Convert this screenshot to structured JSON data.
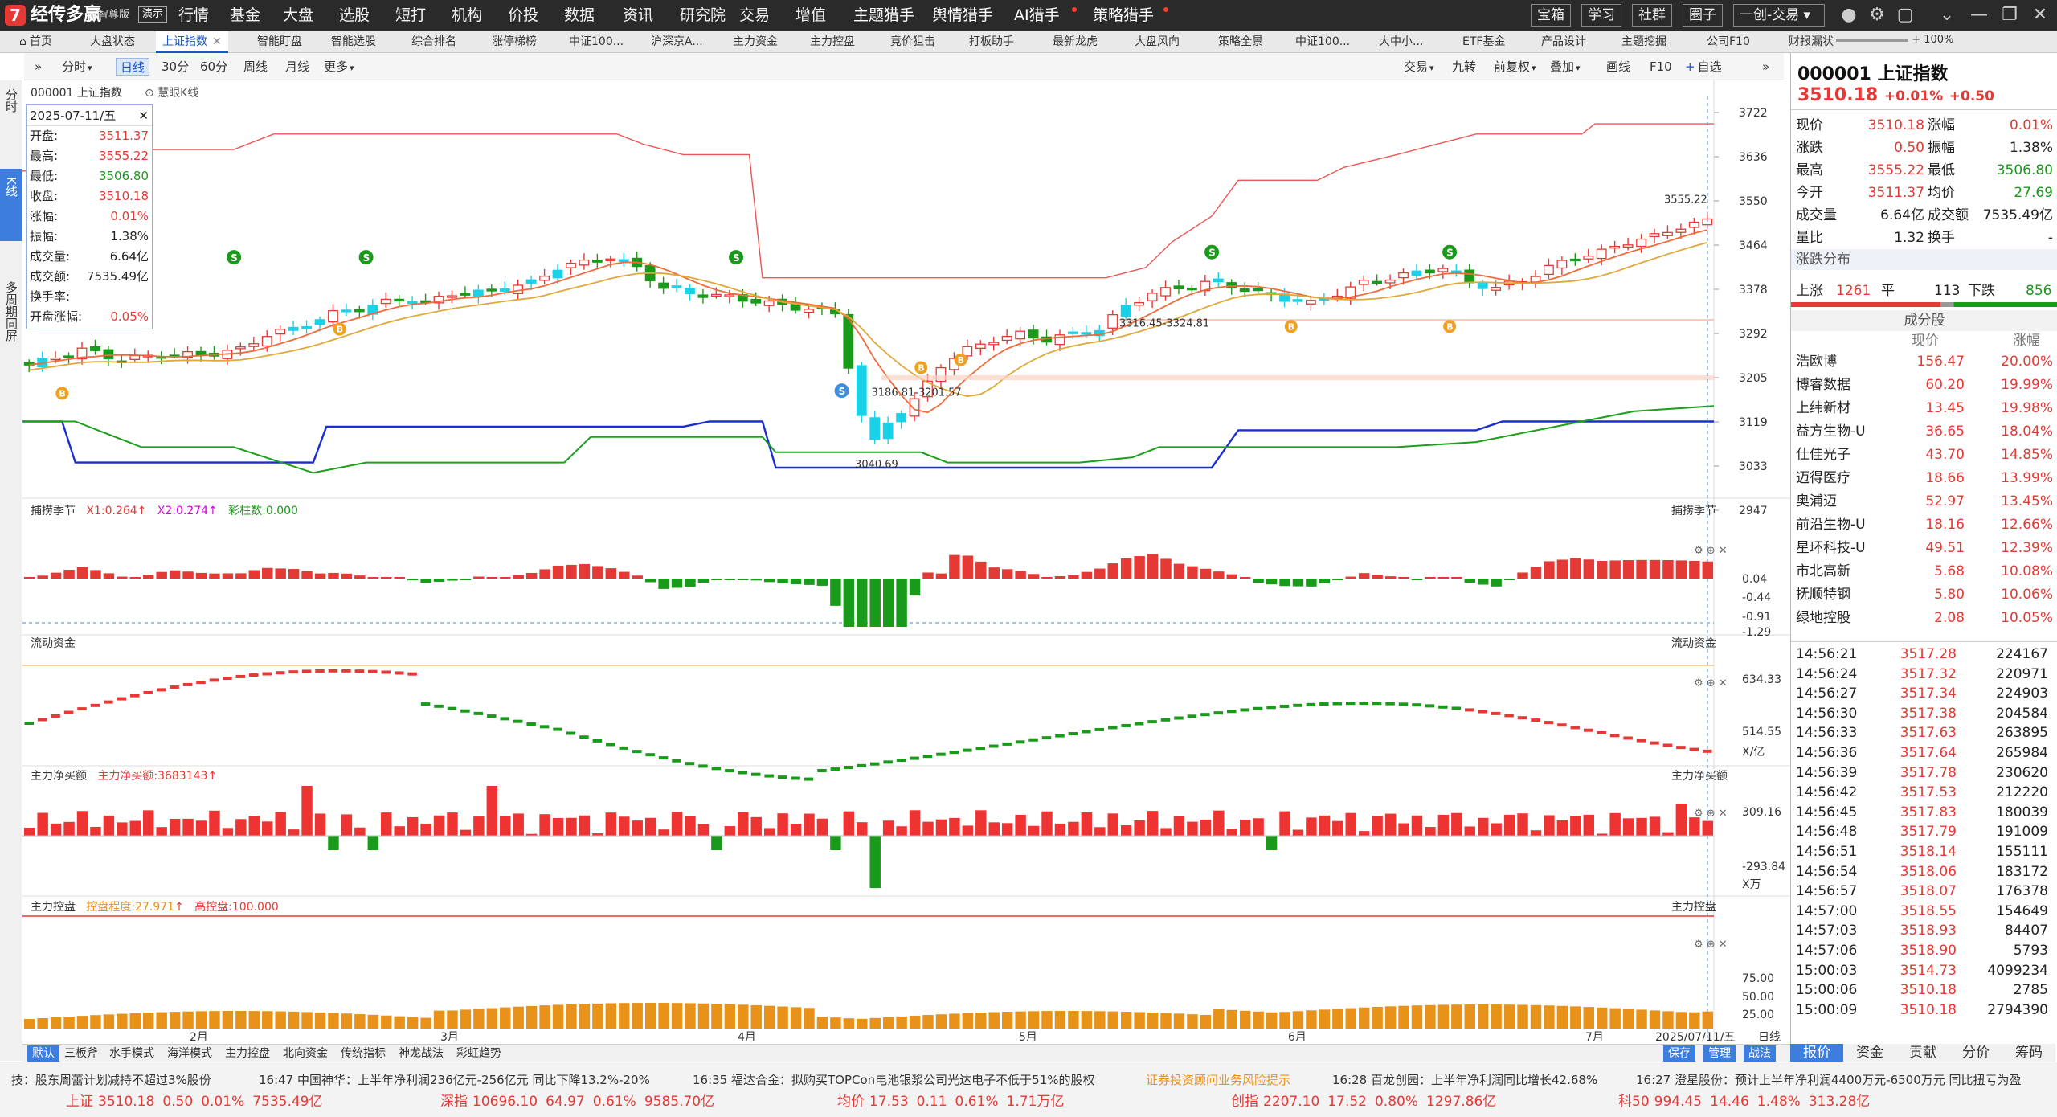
{
  "app": {
    "name": "经传多赢",
    "edition": "智尊版",
    "demo": "演示"
  },
  "menu": [
    "行情",
    "基金",
    "大盘",
    "选股",
    "短打",
    "机构",
    "价投",
    "数据",
    "资讯",
    "研究院",
    "交易",
    "增值",
    "主题猎手",
    "舆情猎手",
    "AI猎手",
    "策略猎手"
  ],
  "title_buttons": [
    "宝箱",
    "学习",
    "社群",
    "圈子",
    "一创-交易"
  ],
  "tabs": [
    "首页",
    "大盘状态",
    "上证指数",
    "智能盯盘",
    "智能选股",
    "综合排名",
    "涨停梯榜",
    "中证100...",
    "沪深京A...",
    "主力资金",
    "主力控盘",
    "竞价狙击",
    "打板助手",
    "最新龙虎",
    "大盘风向",
    "策略全景",
    "中证100...",
    "大中小...",
    "ETF基金",
    "产品设计",
    "主题挖掘",
    "公司F10",
    "财报漏状"
  ],
  "toolbar": {
    "periods": [
      "分时",
      "日线",
      "30分",
      "60分",
      "周线",
      "月线",
      "更多"
    ],
    "right_tools": [
      "交易",
      "九转",
      "前复权",
      "叠加",
      "画线",
      "F10",
      "自选"
    ],
    "zoom": "100%"
  },
  "left_tabs": [
    "分时",
    "K线",
    "多周期同屏"
  ],
  "chart": {
    "instrument": "000001 上证指数",
    "indicator_name": "慧眼K线",
    "y_ticks": [
      "3722",
      "3636",
      "3550",
      "3464",
      "3378",
      "3292",
      "3205",
      "3119",
      "3033",
      "2947"
    ],
    "last_high_label": "3555.22",
    "annotations": {
      "gap1": "3316.45-3324.81",
      "gap2": "3186.81-3201.57",
      "low": "3040.69"
    },
    "x_labels": [
      "2月",
      "3月",
      "4月",
      "5月",
      "6月",
      "7月",
      "2025/07/11/五",
      "日线"
    ],
    "panels": {
      "p1": {
        "title": "捕捞季节",
        "x1": "X1:0.264",
        "x2": "X2:0.274",
        "bars": "彩柱数:0.000",
        "ticks": [
          "0.04",
          "-0.44",
          "-0.91",
          "-1.29"
        ]
      },
      "p2": {
        "title": "流动资金",
        "ticks": [
          "634.33",
          "514.55",
          "X/亿"
        ]
      },
      "p3": {
        "title": "主力净买额",
        "value": "主力净买额:3683143",
        "ticks": [
          "309.16",
          "-293.84",
          "X万"
        ]
      },
      "p4": {
        "title": "主力控盘",
        "ctrl": "控盘程度:27.971",
        "high": "高控盘:100.000",
        "ticks": [
          "75.00",
          "50.00",
          "25.00"
        ]
      }
    }
  },
  "infobox": {
    "date": "2025-07-11/五",
    "rows": [
      {
        "k": "开盘:",
        "v": "3511.37",
        "c": "red"
      },
      {
        "k": "最高:",
        "v": "3555.22",
        "c": "red"
      },
      {
        "k": "最低:",
        "v": "3506.80",
        "c": "green"
      },
      {
        "k": "收盘:",
        "v": "3510.18",
        "c": "red"
      },
      {
        "k": "涨幅:",
        "v": "0.01%",
        "c": "red"
      },
      {
        "k": "振幅:",
        "v": "1.38%",
        "c": "dark"
      },
      {
        "k": "成交量:",
        "v": "6.64亿",
        "c": "dark"
      },
      {
        "k": "成交额:",
        "v": "7535.49亿",
        "c": "dark"
      },
      {
        "k": "换手率:",
        "v": "",
        "c": "dark"
      },
      {
        "k": "开盘涨幅:",
        "v": "0.05%",
        "c": "red"
      }
    ]
  },
  "bottom_tabs": [
    "默认",
    "三板斧",
    "水手模式",
    "海洋模式",
    "主力控盘",
    "北向资金",
    "传统指标",
    "神龙战法",
    "彩虹趋势"
  ],
  "bottom_right": [
    "保存",
    "管理",
    "战法"
  ],
  "quote": {
    "code": "000001",
    "name": "上证指数",
    "price": "3510.18",
    "pct": "+0.01%",
    "chg": "+0.50",
    "fields": [
      [
        "现价",
        "3510.18",
        "red",
        "涨幅",
        "0.01%",
        "red"
      ],
      [
        "涨跌",
        "0.50",
        "red",
        "振幅",
        "1.38%",
        "dark"
      ],
      [
        "最高",
        "3555.22",
        "red",
        "最低",
        "3506.80",
        "green"
      ],
      [
        "今开",
        "3511.37",
        "red",
        "均价",
        "27.69",
        "green"
      ],
      [
        "成交量",
        "6.64亿",
        "dark",
        "成交额",
        "7535.49亿",
        "dark"
      ],
      [
        "量比",
        "1.32",
        "dark",
        "换手",
        "-",
        "dark"
      ]
    ],
    "dist_title": "涨跌分布",
    "dist": {
      "up_label": "上涨",
      "up": "1261",
      "flat_label": "平",
      "flat": "113",
      "down_label": "下跌",
      "down": "856"
    },
    "stocks_title": "成分股",
    "stocks_header": [
      "",
      "现价",
      "涨幅"
    ],
    "stocks": [
      [
        "浩欧博",
        "156.47",
        "20.00%"
      ],
      [
        "博睿数据",
        "60.20",
        "19.99%"
      ],
      [
        "上纬新材",
        "13.45",
        "19.98%"
      ],
      [
        "益方生物-U",
        "36.65",
        "18.04%"
      ],
      [
        "仕佳光子",
        "43.70",
        "14.85%"
      ],
      [
        "迈得医疗",
        "18.66",
        "13.99%"
      ],
      [
        "奥浦迈",
        "52.97",
        "13.45%"
      ],
      [
        "前沿生物-U",
        "18.16",
        "12.66%"
      ],
      [
        "星环科技-U",
        "49.51",
        "12.39%"
      ],
      [
        "市北高新",
        "5.68",
        "10.08%"
      ],
      [
        "抚顺特钢",
        "5.80",
        "10.06%"
      ],
      [
        "绿地控股",
        "2.08",
        "10.05%"
      ]
    ],
    "ticks": [
      [
        "14:56:21",
        "3517.28",
        "224167"
      ],
      [
        "14:56:24",
        "3517.32",
        "220971"
      ],
      [
        "14:56:27",
        "3517.34",
        "224903"
      ],
      [
        "14:56:30",
        "3517.38",
        "204584"
      ],
      [
        "14:56:33",
        "3517.63",
        "263895"
      ],
      [
        "14:56:36",
        "3517.64",
        "265984"
      ],
      [
        "14:56:39",
        "3517.78",
        "230620"
      ],
      [
        "14:56:42",
        "3517.53",
        "212220"
      ],
      [
        "14:56:45",
        "3517.83",
        "180039"
      ],
      [
        "14:56:48",
        "3517.79",
        "191009"
      ],
      [
        "14:56:51",
        "3518.14",
        "155111"
      ],
      [
        "14:56:54",
        "3518.06",
        "183172"
      ],
      [
        "14:56:57",
        "3518.07",
        "176378"
      ],
      [
        "14:57:00",
        "3518.55",
        "154649"
      ],
      [
        "14:57:03",
        "3518.93",
        "84407"
      ],
      [
        "14:57:06",
        "3518.90",
        "5793"
      ],
      [
        "15:00:03",
        "3514.73",
        "4099234"
      ],
      [
        "15:00:06",
        "3510.18",
        "2785"
      ],
      [
        "15:00:09",
        "3510.18",
        "2794390"
      ]
    ],
    "tabs": [
      "报价",
      "资金",
      "贡献",
      "分价",
      "筹码"
    ]
  },
  "footer": {
    "news": [
      {
        "t": "技：股东周蕾计划减持不超过3%股份",
        "c": "dark"
      },
      {
        "t": "16:47 中国神华：上半年净利润236亿元-256亿元 同比下降13.2%-20%",
        "c": "dark"
      },
      {
        "t": "16:35 福达合金：拟购买TOPCon电池银浆公司光达电子不低于51%的股权",
        "c": "dark"
      },
      {
        "t": "证券投资顾问业务风险提示",
        "c": "orange"
      },
      {
        "t": "16:28 百龙创园：上半年净利润同比增长42.68%",
        "c": "dark"
      },
      {
        "t": "16:27 澄星股份：预计上半年净利润4400万元-6500万元 同比扭亏为盈",
        "c": "dark"
      }
    ],
    "indices": [
      {
        "n": "上证",
        "p": "3510.18",
        "c": "0.50",
        "r": "0.01%",
        "a": "7535.49亿"
      },
      {
        "n": "深指",
        "p": "10696.10",
        "c": "64.97",
        "r": "0.61%",
        "a": "9585.70亿"
      },
      {
        "n": "均价",
        "p": "17.53",
        "c": "0.11",
        "r": "0.61%",
        "a": "1.71万亿"
      },
      {
        "n": "创指",
        "p": "2207.10",
        "c": "17.52",
        "r": "0.80%",
        "a": "1297.86亿"
      },
      {
        "n": "科50",
        "p": "994.45",
        "c": "14.46",
        "r": "1.48%",
        "a": "313.28亿"
      }
    ]
  },
  "colors": {
    "up": "#e53935",
    "down": "#1a9a1a",
    "accent": "#1a56c8",
    "cyan": "#19d2e8",
    "orange": "#e8921a"
  }
}
